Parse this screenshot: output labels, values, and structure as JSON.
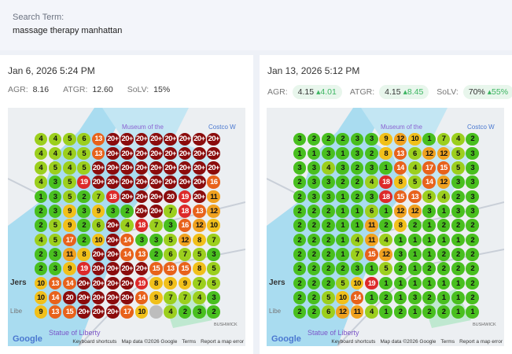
{
  "search": {
    "label": "Search Term:",
    "value": "massage therapy manhattan"
  },
  "colors": {
    "1-3": "#49bf1f",
    "4-7": "#9ccf1e",
    "8-10": "#f1c01b",
    "11-12": "#f0a11f",
    "13-17": "#e8621b",
    "18-19": "#dd2a2a",
    "20+": "#8b0c0c",
    "none": "#bdbdbd"
  },
  "map_labels": {
    "museum": "Museum of the",
    "costco": "Costco W",
    "statue": "Statue of Liberty",
    "google": "Google",
    "shortcuts": "Keyboard shortcuts",
    "mapdata": "Map data ©2026 Google",
    "terms": "Terms",
    "report": "Report a map error",
    "bushwick": "BUSHWICK",
    "jersey": "Jers",
    "liberty": "Libe"
  },
  "reports": [
    {
      "date": "Jan 6, 2026 5:24 PM",
      "agr_label": "AGR:",
      "agr": "8.16",
      "atgr_label": "ATGR:",
      "atgr": "12.60",
      "solv_label": "SoLV:",
      "solv": "15%",
      "grid": [
        [
          "4",
          "4",
          "5",
          "6",
          "13",
          "20+",
          "20+",
          "20+",
          "20+",
          "20+",
          "20+",
          "20+",
          "20+"
        ],
        [
          "4",
          "4",
          "4",
          "5",
          "13",
          "20+",
          "20+",
          "20+",
          "20+",
          "20+",
          "20+",
          "20+",
          "20+"
        ],
        [
          "4",
          "5",
          "4",
          "5",
          "20+",
          "20+",
          "20+",
          "20+",
          "20+",
          "20+",
          "20+",
          "20+",
          "20+"
        ],
        [
          "4",
          "3",
          "5",
          "19",
          "20+",
          "20+",
          "20+",
          "20+",
          "20+",
          "20+",
          "20+",
          "20+",
          "16"
        ],
        [
          "1",
          "3",
          "5",
          "2",
          "7",
          "18",
          "20+",
          "20+",
          "20+",
          "20",
          "19",
          "20+",
          "11"
        ],
        [
          "2",
          "3",
          "9",
          "3",
          "9",
          "3",
          "2",
          "20+",
          "20+",
          "7",
          "18",
          "13",
          "12"
        ],
        [
          "2",
          "5",
          "9",
          "2",
          "6",
          "20+",
          "4",
          "18",
          "7",
          "3",
          "16",
          "12",
          "10"
        ],
        [
          "4",
          "5",
          "17",
          "2",
          "10",
          "20+",
          "14",
          "3",
          "3",
          "5",
          "12",
          "8",
          "7"
        ],
        [
          "2",
          "3",
          "11",
          "8",
          "20+",
          "20+",
          "14",
          "13",
          "2",
          "6",
          "7",
          "5",
          "3"
        ],
        [
          "2",
          "3",
          "9",
          "19",
          "20+",
          "20+",
          "20+",
          "20+",
          "15",
          "13",
          "15",
          "8",
          "5"
        ],
        [
          "10",
          "13",
          "14",
          "20+",
          "20+",
          "20+",
          "20+",
          "19",
          "8",
          "9",
          "9",
          "7",
          "5"
        ],
        [
          "10",
          "14",
          "20",
          "20+",
          "20+",
          "20+",
          "20+",
          "14",
          "9",
          "7",
          "7",
          "4",
          "3"
        ],
        [
          "9",
          "13",
          "15",
          "20+",
          "20+",
          "20+",
          "17",
          "10",
          "",
          "4",
          "2",
          "3",
          "2"
        ]
      ]
    },
    {
      "date": "Jan 13, 2026 5:12 PM",
      "agr_label": "AGR:",
      "agr": "4.15",
      "agr_delta": "4.01",
      "atgr_label": "ATGR:",
      "atgr": "4.15",
      "atgr_delta": "8.45",
      "solv_label": "SoLV:",
      "solv": "70%",
      "solv_delta": "55%",
      "delta_icon": "triangle-up-icon",
      "grid": [
        [
          "3",
          "2",
          "2",
          "2",
          "3",
          "3",
          "9",
          "12",
          "10",
          "1",
          "7",
          "4",
          "2"
        ],
        [
          "1",
          "1",
          "3",
          "1",
          "3",
          "2",
          "8",
          "13",
          "6",
          "12",
          "12",
          "5",
          "3"
        ],
        [
          "3",
          "3",
          "4",
          "3",
          "2",
          "3",
          "1",
          "14",
          "4",
          "17",
          "15",
          "5",
          "3"
        ],
        [
          "2",
          "3",
          "3",
          "2",
          "2",
          "4",
          "18",
          "8",
          "5",
          "14",
          "12",
          "3",
          "3"
        ],
        [
          "2",
          "3",
          "3",
          "1",
          "2",
          "3",
          "18",
          "15",
          "13",
          "5",
          "4",
          "2",
          "3"
        ],
        [
          "2",
          "2",
          "2",
          "1",
          "1",
          "6",
          "1",
          "12",
          "12",
          "3",
          "1",
          "3",
          "3"
        ],
        [
          "2",
          "2",
          "2",
          "1",
          "1",
          "11",
          "2",
          "8",
          "2",
          "1",
          "2",
          "2",
          "2"
        ],
        [
          "2",
          "2",
          "2",
          "1",
          "4",
          "11",
          "4",
          "1",
          "1",
          "1",
          "1",
          "1",
          "2"
        ],
        [
          "2",
          "2",
          "2",
          "1",
          "7",
          "15",
          "12",
          "3",
          "1",
          "1",
          "2",
          "2",
          "2"
        ],
        [
          "2",
          "2",
          "2",
          "2",
          "3",
          "1",
          "5",
          "2",
          "1",
          "2",
          "2",
          "2",
          "2"
        ],
        [
          "2",
          "2",
          "2",
          "5",
          "10",
          "19",
          "1",
          "1",
          "1",
          "1",
          "1",
          "1",
          "2"
        ],
        [
          "2",
          "2",
          "5",
          "10",
          "14",
          "1",
          "2",
          "1",
          "3",
          "2",
          "1",
          "1",
          "2"
        ],
        [
          "2",
          "2",
          "6",
          "12",
          "11",
          "4",
          "1",
          "2",
          "1",
          "2",
          "2",
          "1",
          "1"
        ]
      ]
    }
  ]
}
